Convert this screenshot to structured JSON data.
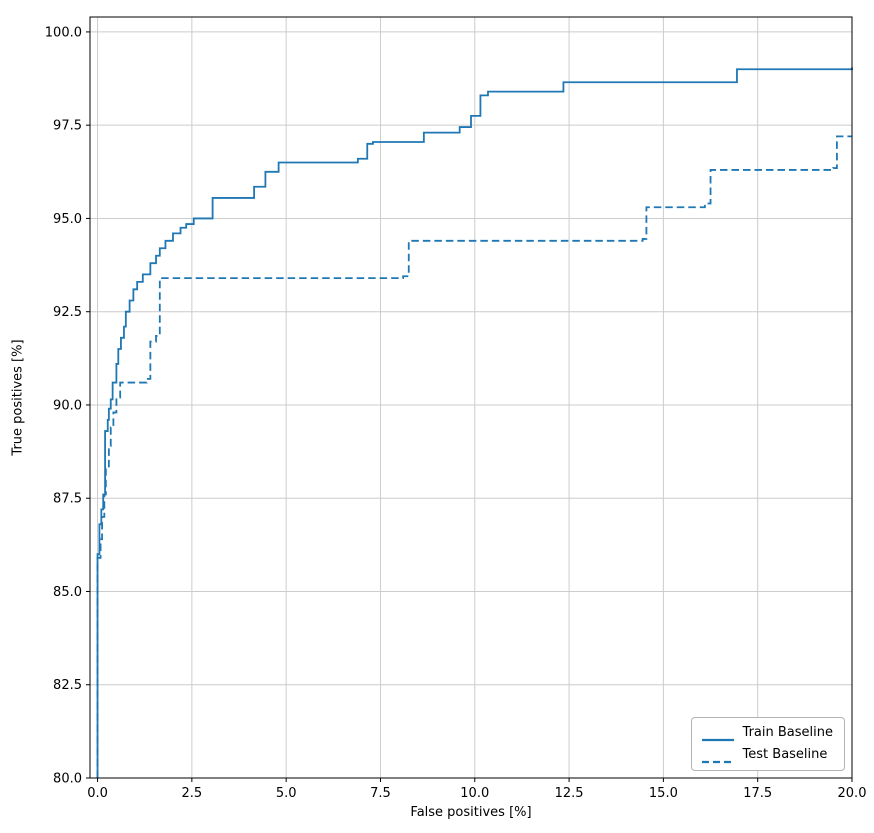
{
  "chart_data": {
    "type": "line",
    "title": "",
    "xlabel": "False positives [%]",
    "ylabel": "True positives [%]",
    "xlim": [
      -0.2,
      20.0
    ],
    "ylim": [
      80.0,
      100.4
    ],
    "grid": true,
    "legend_position": "lower right",
    "color": "#1f77b4",
    "grid_color": "#cccccc",
    "step_mode": "post",
    "x_ticks": [
      0.0,
      2.5,
      5.0,
      7.5,
      10.0,
      12.5,
      15.0,
      17.5,
      20.0
    ],
    "x_tick_labels": [
      "0.0",
      "2.5",
      "5.0",
      "7.5",
      "10.0",
      "12.5",
      "15.0",
      "17.5",
      "20.0"
    ],
    "y_ticks": [
      80.0,
      82.5,
      85.0,
      87.5,
      90.0,
      92.5,
      95.0,
      97.5,
      100.0
    ],
    "y_tick_labels": [
      "80.0",
      "82.5",
      "85.0",
      "87.5",
      "90.0",
      "92.5",
      "95.0",
      "97.5",
      "100.0"
    ],
    "series": [
      {
        "name": "Train Baseline",
        "style": "solid",
        "points": [
          [
            0.0,
            80.0
          ],
          [
            0.0,
            86.0
          ],
          [
            0.05,
            86.8
          ],
          [
            0.1,
            87.2
          ],
          [
            0.15,
            87.6
          ],
          [
            0.2,
            88.2
          ],
          [
            0.2,
            89.3
          ],
          [
            0.27,
            89.6
          ],
          [
            0.3,
            89.9
          ],
          [
            0.35,
            90.15
          ],
          [
            0.4,
            90.6
          ],
          [
            0.5,
            91.1
          ],
          [
            0.55,
            91.5
          ],
          [
            0.62,
            91.8
          ],
          [
            0.7,
            92.1
          ],
          [
            0.75,
            92.5
          ],
          [
            0.85,
            92.8
          ],
          [
            0.95,
            93.1
          ],
          [
            1.05,
            93.3
          ],
          [
            1.2,
            93.5
          ],
          [
            1.4,
            93.8
          ],
          [
            1.55,
            94.0
          ],
          [
            1.65,
            94.2
          ],
          [
            1.8,
            94.4
          ],
          [
            2.0,
            94.6
          ],
          [
            2.2,
            94.75
          ],
          [
            2.35,
            94.85
          ],
          [
            2.55,
            95.0
          ],
          [
            3.05,
            95.55
          ],
          [
            4.15,
            95.85
          ],
          [
            4.45,
            96.25
          ],
          [
            4.8,
            96.5
          ],
          [
            6.9,
            96.6
          ],
          [
            7.15,
            97.0
          ],
          [
            7.3,
            97.05
          ],
          [
            8.65,
            97.3
          ],
          [
            9.6,
            97.45
          ],
          [
            9.9,
            97.75
          ],
          [
            10.15,
            98.3
          ],
          [
            10.35,
            98.4
          ],
          [
            12.35,
            98.65
          ],
          [
            16.95,
            99.0
          ],
          [
            20.0,
            99.05
          ]
        ]
      },
      {
        "name": "Test Baseline",
        "style": "dashed",
        "points": [
          [
            0.0,
            80.0
          ],
          [
            0.0,
            85.9
          ],
          [
            0.08,
            86.4
          ],
          [
            0.12,
            87.0
          ],
          [
            0.18,
            87.6
          ],
          [
            0.22,
            88.3
          ],
          [
            0.3,
            88.9
          ],
          [
            0.35,
            89.4
          ],
          [
            0.42,
            89.8
          ],
          [
            0.5,
            90.2
          ],
          [
            0.6,
            90.6
          ],
          [
            1.3,
            90.7
          ],
          [
            1.4,
            91.7
          ],
          [
            1.55,
            91.85
          ],
          [
            1.65,
            93.4
          ],
          [
            8.1,
            93.45
          ],
          [
            8.25,
            94.4
          ],
          [
            14.45,
            94.45
          ],
          [
            14.55,
            95.3
          ],
          [
            16.1,
            95.4
          ],
          [
            16.25,
            96.3
          ],
          [
            19.5,
            96.35
          ],
          [
            19.6,
            97.2
          ],
          [
            20.0,
            97.2
          ]
        ]
      }
    ]
  }
}
